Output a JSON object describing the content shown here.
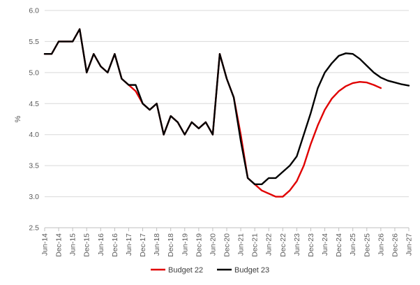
{
  "chart_data": {
    "type": "line",
    "ylabel": "%",
    "ylim": [
      2.5,
      6.0
    ],
    "yticks": [
      "6.0",
      "5.5",
      "5.0",
      "4.5",
      "4.0",
      "3.5",
      "3.0",
      "2.5"
    ],
    "xtick_labels": [
      "Jun-14",
      "Dec-14",
      "Jun-15",
      "Dec-15",
      "Jun-16",
      "Dec-16",
      "Jun-17",
      "Dec-17",
      "Jun-18",
      "Dec-18",
      "Jun-19",
      "Dec-19",
      "Jun-20",
      "Dec-20",
      "Jun-21",
      "Dec-21",
      "Jun-22",
      "Dec-22",
      "Jun-23",
      "Dec-23",
      "Jun-24",
      "Dec-24",
      "Jun-25",
      "Dec-25",
      "Jun-26",
      "Dec-26",
      "Jun-27"
    ],
    "x": [
      "Jun-14",
      "Sep-14",
      "Dec-14",
      "Mar-15",
      "Jun-15",
      "Sep-15",
      "Dec-15",
      "Mar-16",
      "Jun-16",
      "Sep-16",
      "Dec-16",
      "Mar-17",
      "Jun-17",
      "Sep-17",
      "Dec-17",
      "Mar-18",
      "Jun-18",
      "Sep-18",
      "Dec-18",
      "Mar-19",
      "Jun-19",
      "Sep-19",
      "Dec-19",
      "Mar-20",
      "Jun-20",
      "Sep-20",
      "Dec-20",
      "Mar-21",
      "Jun-21",
      "Sep-21",
      "Dec-21",
      "Mar-22",
      "Jun-22",
      "Sep-22",
      "Dec-22",
      "Mar-23",
      "Jun-23",
      "Sep-23",
      "Dec-23",
      "Mar-24",
      "Jun-24",
      "Sep-24",
      "Dec-24",
      "Mar-25",
      "Jun-25",
      "Sep-25",
      "Dec-25",
      "Mar-26",
      "Jun-26",
      "Sep-26",
      "Dec-26",
      "Mar-27",
      "Jun-27"
    ],
    "legend_position": "bottom",
    "grid": "horizontal",
    "series": [
      {
        "name": "Budget 22",
        "color": "#e00000",
        "values": [
          5.3,
          5.3,
          5.5,
          5.5,
          5.5,
          5.7,
          5.0,
          5.3,
          5.1,
          5.0,
          5.3,
          4.9,
          4.8,
          4.7,
          4.5,
          4.4,
          4.5,
          4.0,
          4.3,
          4.2,
          4.0,
          4.2,
          4.1,
          4.2,
          4.0,
          5.3,
          4.9,
          4.6,
          4.0,
          3.3,
          3.2,
          3.1,
          3.05,
          3.0,
          3.0,
          3.1,
          3.25,
          3.5,
          3.85,
          4.15,
          4.4,
          4.58,
          4.7,
          4.78,
          4.83,
          4.85,
          4.84,
          4.8,
          4.75,
          null,
          null,
          null,
          null
        ]
      },
      {
        "name": "Budget 23",
        "color": "#000000",
        "values": [
          5.3,
          5.3,
          5.5,
          5.5,
          5.5,
          5.7,
          5.0,
          5.3,
          5.1,
          5.0,
          5.3,
          4.9,
          4.8,
          4.8,
          4.5,
          4.4,
          4.5,
          4.0,
          4.3,
          4.2,
          4.0,
          4.2,
          4.1,
          4.2,
          4.0,
          5.3,
          4.9,
          4.6,
          3.9,
          3.3,
          3.2,
          3.2,
          3.3,
          3.3,
          3.4,
          3.5,
          3.65,
          4.0,
          4.35,
          4.75,
          5.0,
          5.15,
          5.27,
          5.31,
          5.3,
          5.22,
          5.11,
          5.0,
          4.92,
          4.87,
          4.84,
          4.81,
          4.79
        ]
      }
    ]
  }
}
